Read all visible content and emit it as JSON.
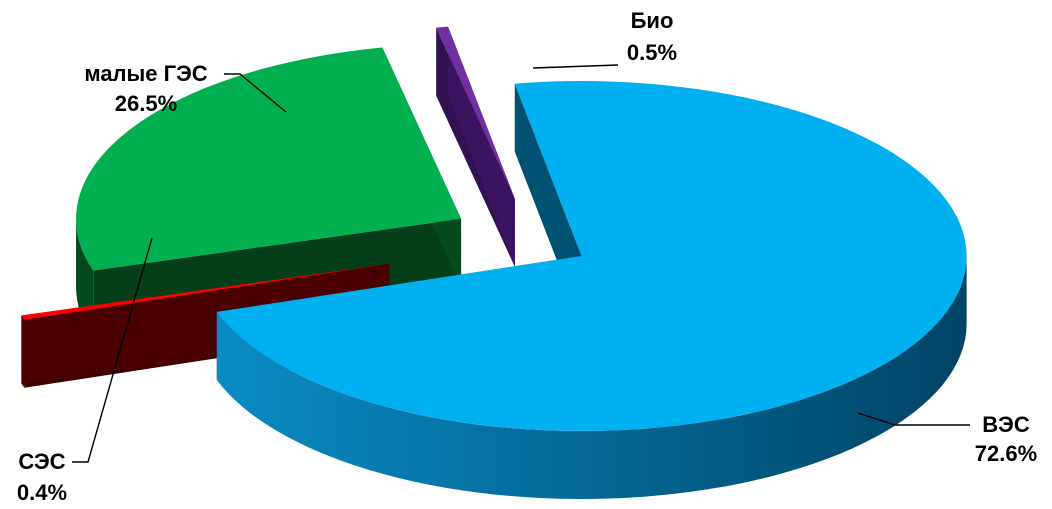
{
  "chart_data": {
    "type": "pie",
    "style": "3d-exploded",
    "slices": [
      {
        "label": "ВЭС",
        "value": 72.6,
        "display": "72.6%",
        "color": "#00b0f0"
      },
      {
        "label": "СЭС",
        "value": 0.4,
        "display": "0.4%",
        "color": "#ff0000"
      },
      {
        "label": "малые ГЭС",
        "value": 26.5,
        "display": "26.5%",
        "color": "#00b050"
      },
      {
        "label": "Био",
        "value": 0.5,
        "display": "0.5%",
        "color": "#7030a0"
      }
    ],
    "legend": "none"
  }
}
